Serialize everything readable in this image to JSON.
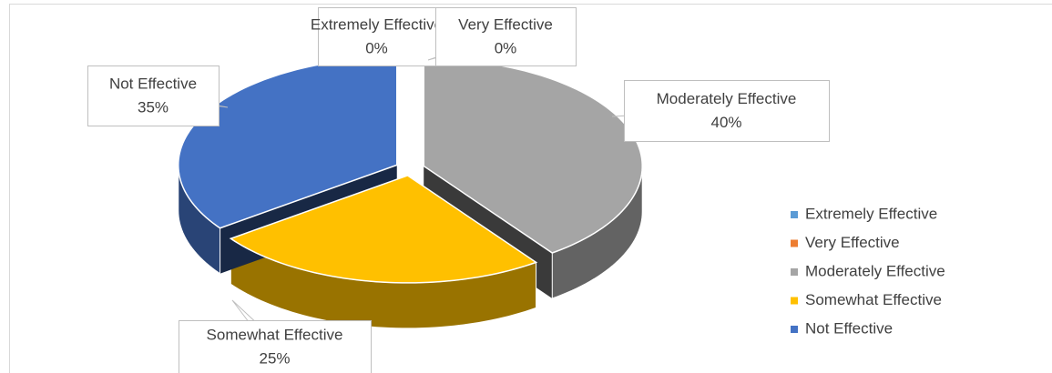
{
  "chart_data": {
    "type": "pie3d",
    "categories": [
      "Extremely Effective",
      "Very Effective",
      "Moderately Effective",
      "Somewhat Effective",
      "Not Effective"
    ],
    "values": [
      0,
      0,
      40,
      25,
      35
    ],
    "value_labels": [
      "0%",
      "0%",
      "40%",
      "25%",
      "35%"
    ],
    "colors": [
      "#5b9bd5",
      "#ed7d31",
      "#a5a5a5",
      "#ffc000",
      "#4472c4"
    ],
    "legend": "right"
  }
}
